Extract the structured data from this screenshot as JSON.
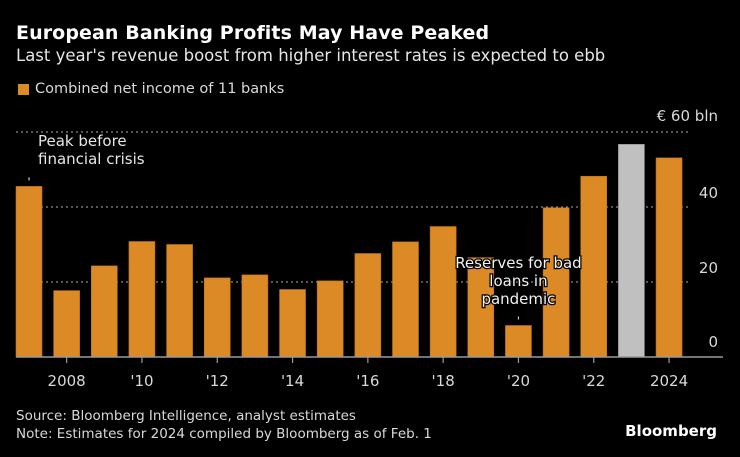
{
  "header": {
    "title": "European Banking Profits May Have Peaked",
    "subtitle": "Last year's revenue boost from higher interest rates is expected to ebb"
  },
  "legend": {
    "label": "Combined net income of 11 banks",
    "color": "#dc8a26"
  },
  "footer": {
    "source": "Source: Bloomberg Intelligence, analyst estimates",
    "note": "Note: Estimates for 2024 compiled by Bloomberg as of Feb. 1",
    "brand": "Bloomberg"
  },
  "chart_data": {
    "type": "bar",
    "title": "European Banking Profits May Have Peaked",
    "subtitle": "Last year's revenue boost from higher interest rates is expected to ebb",
    "xlabel": "",
    "ylabel": "€ bln",
    "unit_label": "€ 60 bln",
    "ylim": [
      0,
      60
    ],
    "yticks": [
      0,
      20,
      40,
      60
    ],
    "ytick_labels": [
      "0",
      "20",
      "40",
      "€ 60 bln"
    ],
    "grid": true,
    "legend_position": "top-left",
    "categories": [
      2007,
      2008,
      2009,
      2010,
      2011,
      2012,
      2013,
      2014,
      2015,
      2016,
      2017,
      2018,
      2019,
      2020,
      2021,
      2022,
      2023,
      2024
    ],
    "xtick_labels": [
      {
        "year": 2008,
        "label": "2008"
      },
      {
        "year": 2010,
        "label": "'10"
      },
      {
        "year": 2012,
        "label": "'12"
      },
      {
        "year": 2014,
        "label": "'14"
      },
      {
        "year": 2016,
        "label": "'16"
      },
      {
        "year": 2018,
        "label": "'18"
      },
      {
        "year": 2020,
        "label": "'20"
      },
      {
        "year": 2022,
        "label": "'22"
      },
      {
        "year": 2024,
        "label": "2024"
      }
    ],
    "series": [
      {
        "name": "Combined net income of 11 banks",
        "color": "#dc8a26",
        "highlight_color": "#c0c0c0",
        "highlight_year": 2023,
        "values": [
          45.5,
          17.7,
          24.3,
          30.8,
          30.0,
          21.1,
          21.9,
          18.0,
          20.3,
          27.6,
          30.7,
          34.8,
          26.5,
          8.4,
          39.8,
          48.2,
          56.7,
          53.1
        ]
      }
    ],
    "annotations": [
      {
        "year": 2007,
        "text": [
          "Peak before",
          "financial crisis"
        ]
      },
      {
        "year": 2020,
        "text": [
          "Reserves for bad",
          "loans in",
          "pandemic"
        ]
      }
    ]
  }
}
